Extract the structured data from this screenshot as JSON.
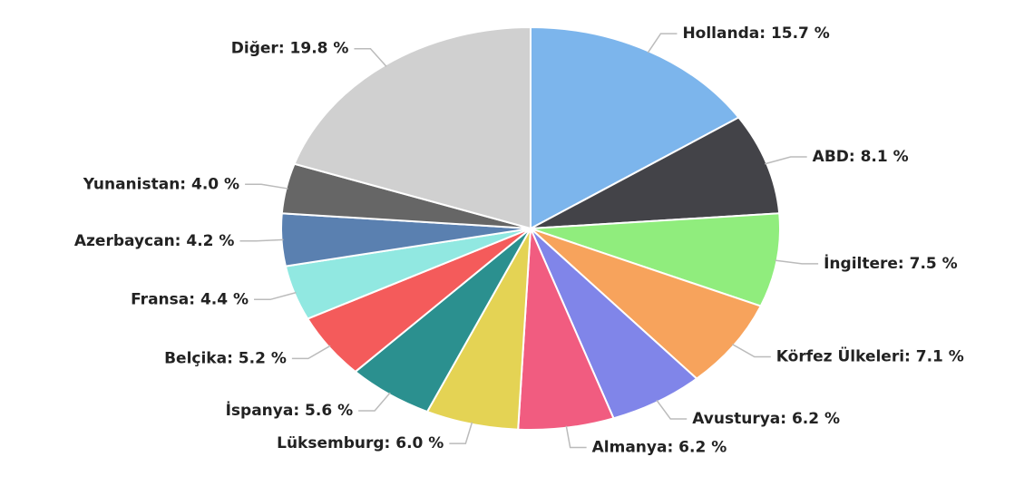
{
  "chart_data": {
    "type": "pie",
    "values": [
      15.7,
      8.1,
      7.5,
      7.1,
      6.2,
      6.2,
      6.0,
      5.6,
      5.2,
      4.4,
      4.2,
      4.0,
      19.8
    ],
    "value_labels": [
      "Hollanda: 15.7 %",
      "ABD: 8.1 %",
      "İngiltere: 7.5 %",
      "Körfez Ülkeleri: 7.1 %",
      "Avusturya: 6.2 %",
      "Almanya: 6.2 %",
      "Lüksemburg: 6.0 %",
      "İspanya: 5.6 %",
      "Belçika: 5.2 %",
      "Fransa: 4.4 %",
      "Azerbaycan: 4.2 %",
      "Yunanistan: 4.0 %",
      "Diğer: 19.8 %"
    ],
    "colors": [
      "#7cb5ec",
      "#434348",
      "#90ed7d",
      "#f7a35c",
      "#8085e9",
      "#f15c80",
      "#e4d354",
      "#2b908f",
      "#f45b5b",
      "#91e8e1",
      "#5a80b0",
      "#666666",
      "#d0d0d0"
    ]
  }
}
